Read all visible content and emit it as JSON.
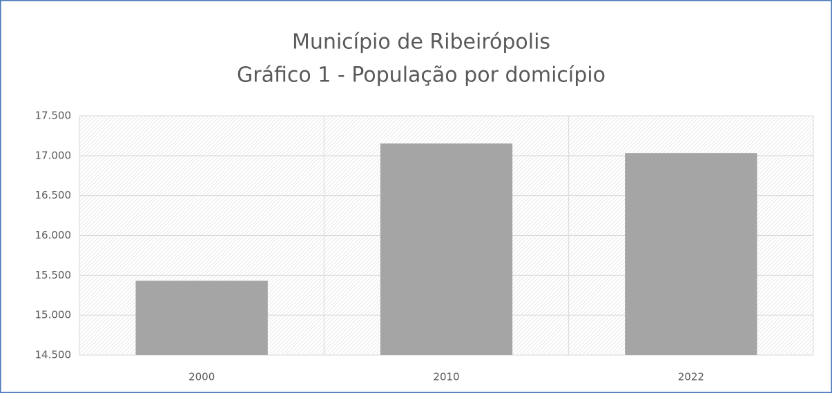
{
  "chart_data": {
    "type": "bar",
    "title": "Município de Ribeirópolis",
    "subtitle": "Gráfico 1 - População por domicípio",
    "categories": [
      "2000",
      "2010",
      "2022"
    ],
    "values": [
      15433,
      17153,
      17032
    ],
    "color": "#a5a5a5",
    "ylim": [
      14500,
      17500
    ],
    "yticks": [
      {
        "value": 14500,
        "label": "14.500"
      },
      {
        "value": 15000,
        "label": "15.000"
      },
      {
        "value": 15500,
        "label": "15.500"
      },
      {
        "value": 16000,
        "label": "16.000"
      },
      {
        "value": 16500,
        "label": "16.500"
      },
      {
        "value": 17000,
        "label": "17.000"
      },
      {
        "value": 17500,
        "label": "17.500"
      }
    ],
    "grid": true
  }
}
